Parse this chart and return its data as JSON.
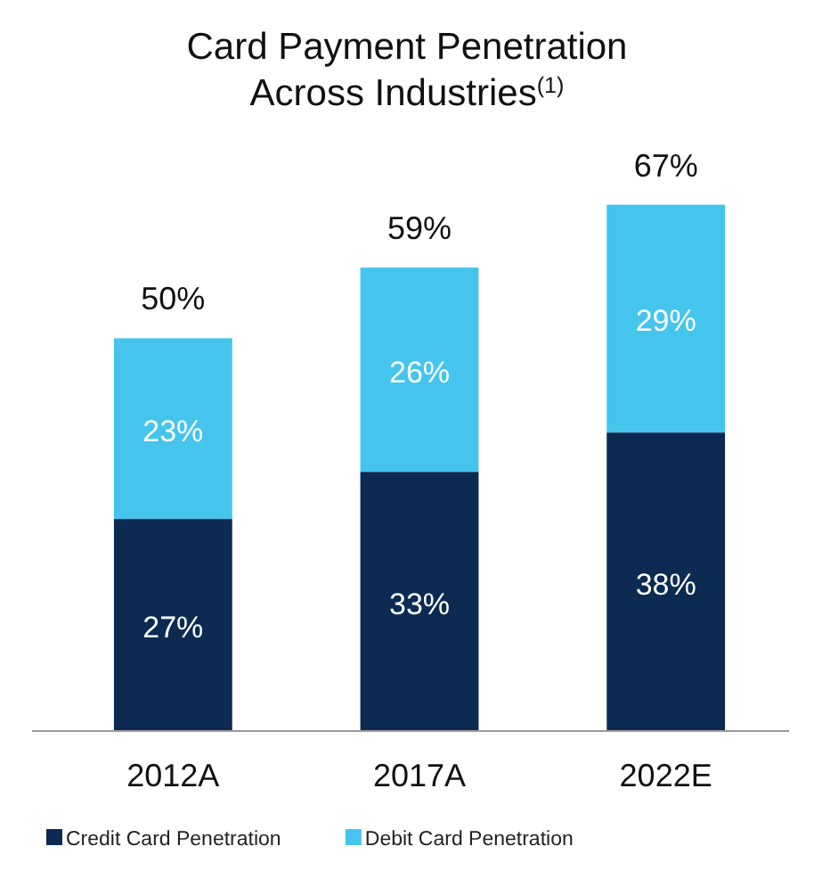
{
  "chart_data": {
    "type": "bar",
    "title": "Card Payment Penetration\nAcross Industries$^{(1)}$",
    "categories": [
      "2012A",
      "2017A",
      "2022E"
    ],
    "stacked": true,
    "legend": "bottom",
    "series": [
      {
        "name": "Credit Card Penetration",
        "color": "#0c2a52",
        "values": [
          27,
          33,
          38
        ],
        "value_labels": [
          "27%",
          "33%",
          "38%"
        ]
      },
      {
        "name": "Debit Card Penetration",
        "color": "#45c4ee",
        "values": [
          23,
          26,
          29
        ],
        "value_labels": [
          "23%",
          "26%",
          "29%"
        ]
      }
    ],
    "totals": [
      "50%",
      "59%",
      "67%"
    ]
  }
}
